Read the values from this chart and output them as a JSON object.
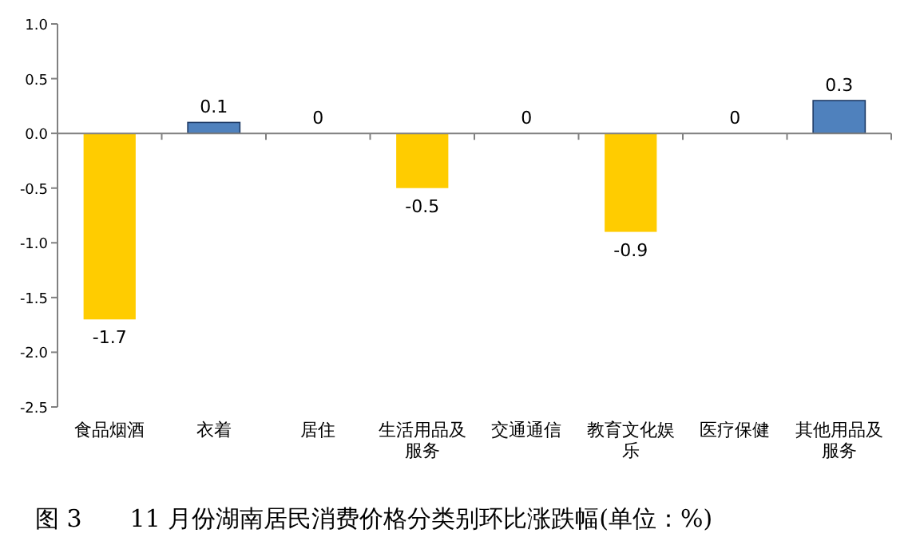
{
  "chart_data": {
    "type": "bar",
    "title": "图 3　　11 月份湖南居民消费价格分类别环比涨跌幅(单位：%)",
    "categories": [
      "食品烟酒",
      "衣着",
      "居住",
      "生活用品及服务",
      "交通通信",
      "教育文化娱乐",
      "医疗保健",
      "其他用品及服务"
    ],
    "values": [
      -1.7,
      0.1,
      0,
      -0.5,
      0,
      -0.9,
      0,
      0.3
    ],
    "colors": [
      "#ffcc00",
      "#4f81bd",
      "#4f81bd",
      "#ffcc00",
      "#4f81bd",
      "#ffcc00",
      "#4f81bd",
      "#4f81bd"
    ],
    "ylim": [
      -2.5,
      1
    ],
    "yticks": [
      {
        "value": -2.5,
        "label": "-2.5"
      },
      {
        "value": -2,
        "label": "-2.0"
      },
      {
        "value": -1.5,
        "label": "-1.5"
      },
      {
        "value": -1,
        "label": "-1.0"
      },
      {
        "value": -0.5,
        "label": "-0.5"
      },
      {
        "value": 0,
        "label": "0.0"
      },
      {
        "value": 0.5,
        "label": "0.5"
      },
      {
        "value": 1,
        "label": "1.0"
      }
    ],
    "data_labels": true
  }
}
